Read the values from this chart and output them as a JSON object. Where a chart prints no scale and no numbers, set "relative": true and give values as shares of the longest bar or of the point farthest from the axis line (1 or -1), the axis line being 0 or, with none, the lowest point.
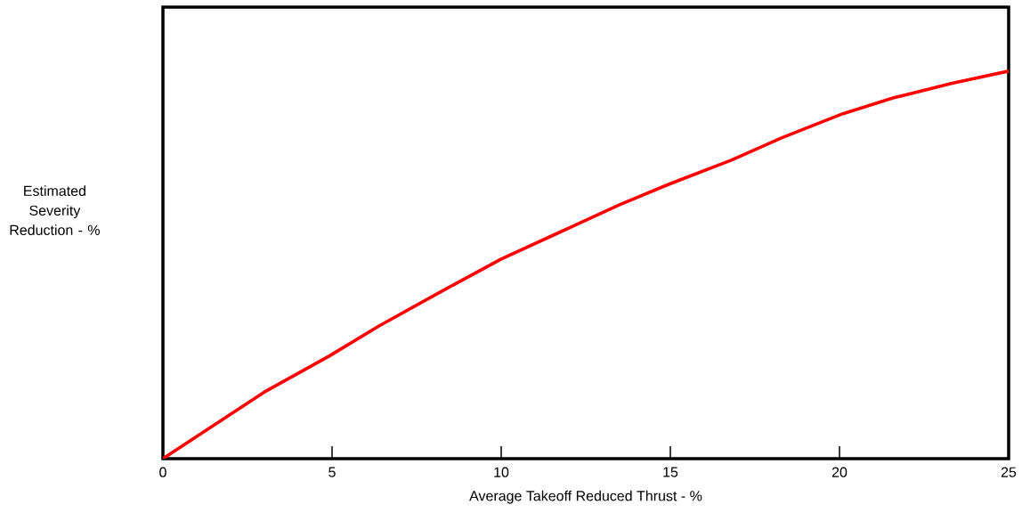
{
  "chart_data": {
    "type": "line",
    "relative": true,
    "xlabel": "Average Takeoff Reduced Thrust - %",
    "ylabel": "Estimated Severity Reduction - %",
    "x": [
      0,
      3.0,
      4.9,
      6.4,
      8.2,
      10,
      11.6,
      13.5,
      14.9,
      16.8,
      18.3,
      20.1,
      21.6,
      23.3,
      25
    ],
    "series": [
      {
        "color": "#ff0000",
        "values": [
          0,
          0.172,
          0.264,
          0.343,
          0.43,
          0.515,
          0.579,
          0.655,
          0.706,
          0.77,
          0.828,
          0.89,
          0.931,
          0.968,
          1
        ]
      }
    ],
    "xlim": [
      0,
      25
    ],
    "xticks": [
      0,
      5,
      10,
      15,
      20,
      25
    ]
  }
}
